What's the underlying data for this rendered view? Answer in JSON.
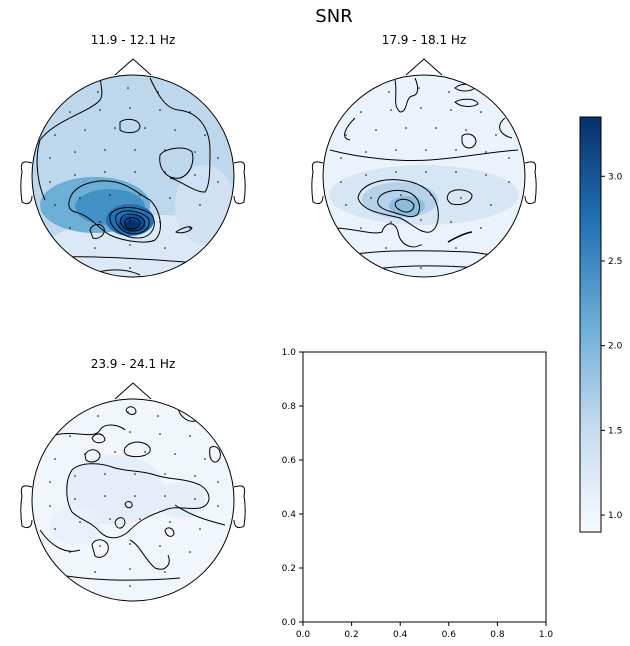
{
  "chart_data": {
    "type": "topomap",
    "title": "SNR",
    "colormap": {
      "name": "Blues",
      "low": "#f7fbff",
      "mid": "#6baed6",
      "high": "#08306b"
    },
    "panels": [
      {
        "title": "11.9 - 12.1 Hz",
        "peak_snr": 3.3,
        "base_snr": 1.7
      },
      {
        "title": "17.9 - 18.1 Hz",
        "peak_snr": 2.1,
        "base_snr": 1.2
      },
      {
        "title": "23.9 - 24.1 Hz",
        "peak_snr": 1.5,
        "base_snr": 1.05
      }
    ],
    "empty_axes": {
      "xlim": [
        0.0,
        1.0
      ],
      "ylim": [
        0.0,
        1.0
      ],
      "xticks": [
        "0.0",
        "0.2",
        "0.4",
        "0.6",
        "0.8",
        "1.0"
      ],
      "yticks": [
        "0.0",
        "0.2",
        "0.4",
        "0.6",
        "0.8",
        "1.0"
      ]
    },
    "colorbar": {
      "range": [
        0.9,
        3.35
      ],
      "ticks": [
        1.0,
        1.5,
        2.0,
        2.5,
        3.0
      ],
      "tick_labels": [
        "1.0",
        "1.5",
        "2.0",
        "2.5",
        "3.0"
      ]
    }
  }
}
